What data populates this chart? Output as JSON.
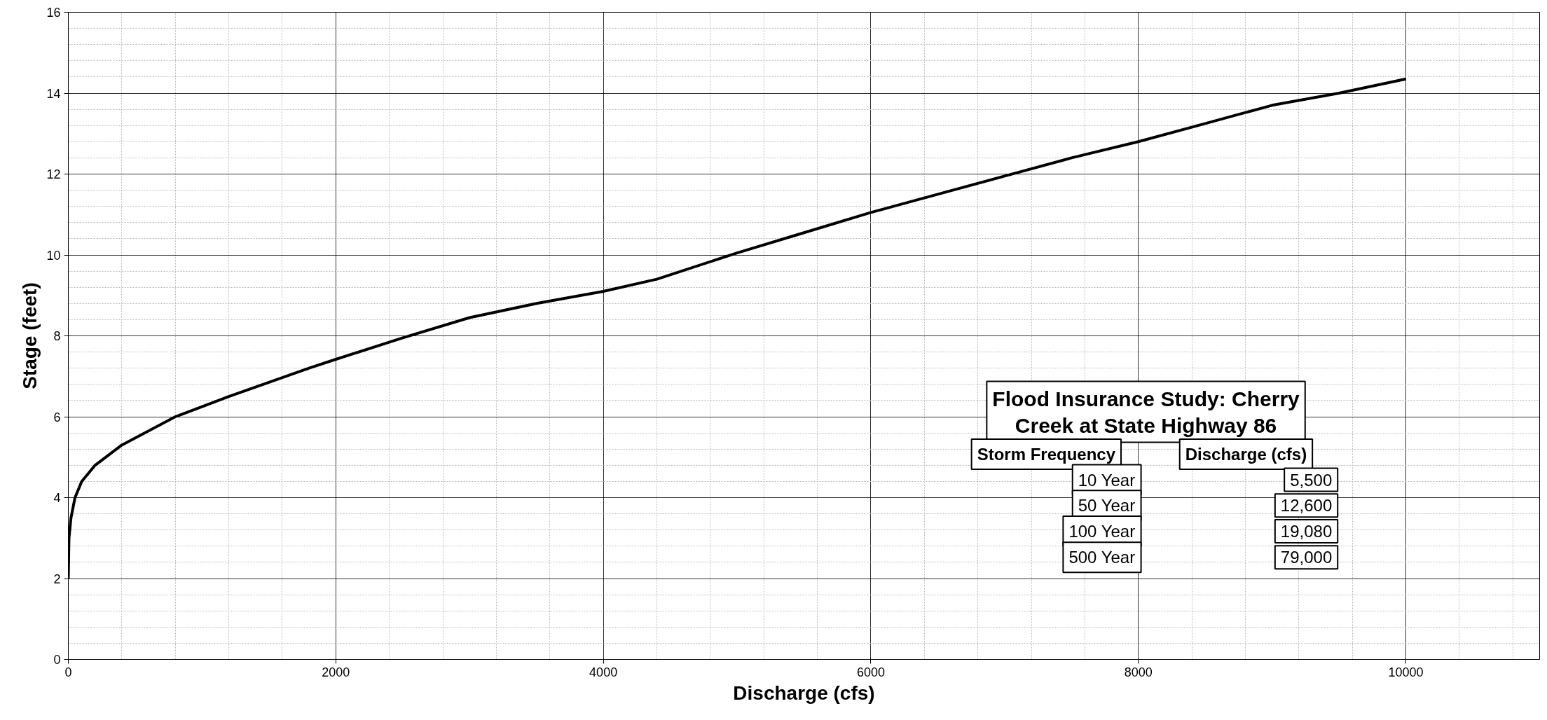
{
  "chart_data": {
    "type": "line",
    "xlabel": "Discharge (cfs)",
    "ylabel": "Stage (feet)",
    "x": [
      0,
      5,
      20,
      50,
      100,
      200,
      300,
      400,
      600,
      800,
      1000,
      1200,
      1500,
      1800,
      2000,
      2500,
      3000,
      3500,
      4000,
      4400,
      5000,
      5500,
      6000,
      6500,
      7000,
      7500,
      8000,
      8500,
      9000,
      9500,
      10000
    ],
    "series": [
      {
        "color": "#000000",
        "values": [
          2,
          3,
          3.5,
          4,
          4.4,
          4.8,
          5.05,
          5.3,
          5.65,
          6.0,
          6.25,
          6.5,
          6.85,
          7.2,
          7.42,
          7.95,
          8.45,
          8.8,
          9.1,
          9.4,
          10.05,
          10.55,
          11.05,
          11.5,
          11.95,
          12.4,
          12.8,
          13.25,
          13.7,
          14.0,
          14.35
        ]
      }
    ],
    "xlim": [
      0,
      11000
    ],
    "xticks": [
      0,
      2000,
      4000,
      6000,
      8000,
      10000
    ],
    "ylim": [
      0,
      16
    ],
    "yticks": [
      0,
      2,
      4,
      6,
      8,
      10,
      12,
      14,
      16
    ],
    "grid": true,
    "marker": "none",
    "line_style": "solid",
    "annotations": [
      "Flood Insurance Study: Cherry Creek at State Highway 86",
      "Storm Frequency",
      "Discharge (cfs)",
      "10 Year",
      "5,500",
      "50 Year",
      "12,600",
      "100 Year",
      "19,080",
      "500 Year",
      "79,000"
    ]
  }
}
